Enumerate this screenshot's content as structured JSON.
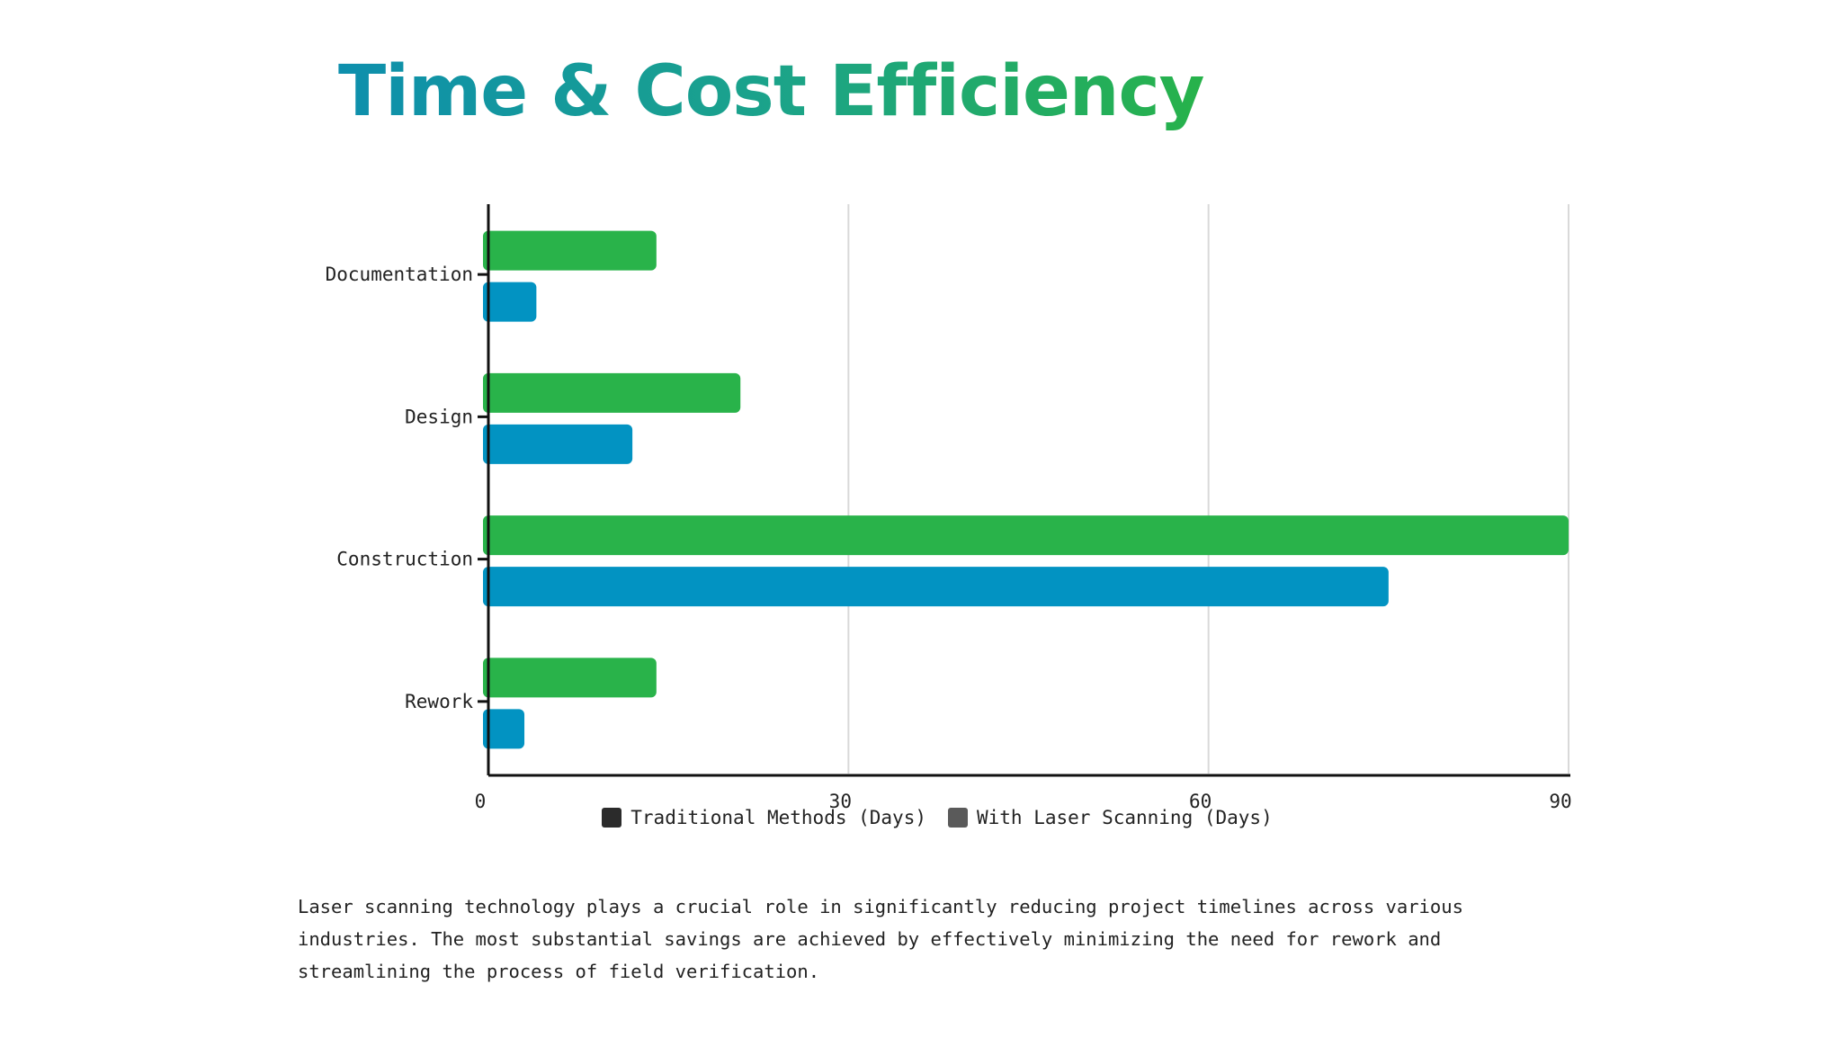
{
  "title": "Time & Cost Efficiency",
  "chart_data": {
    "type": "bar",
    "orientation": "horizontal",
    "categories": [
      "Documentation",
      "Design",
      "Construction",
      "Rework"
    ],
    "series": [
      {
        "name": "Traditional Methods (Days)",
        "values": [
          14,
          21,
          90,
          14
        ],
        "color": "#29b34a"
      },
      {
        "name": "With Laser Scanning (Days)",
        "values": [
          4,
          12,
          75,
          3
        ],
        "color": "#0293c2"
      }
    ],
    "xlim": [
      0,
      90
    ],
    "xticks": [
      "0",
      "30",
      "60",
      "90"
    ],
    "grid": true,
    "legend_position": "bottom"
  },
  "legend": {
    "items": [
      {
        "label": "Traditional Methods (Days)",
        "swatch_color": "#2b2b2b"
      },
      {
        "label": "With Laser Scanning (Days)",
        "swatch_color": "#5a5a5a"
      }
    ]
  },
  "description": "Laser scanning technology plays a crucial role in significantly reducing project timelines across various industries. The most substantial savings are achieved by effectively minimizing the need for rework and streamlining the process of field verification."
}
